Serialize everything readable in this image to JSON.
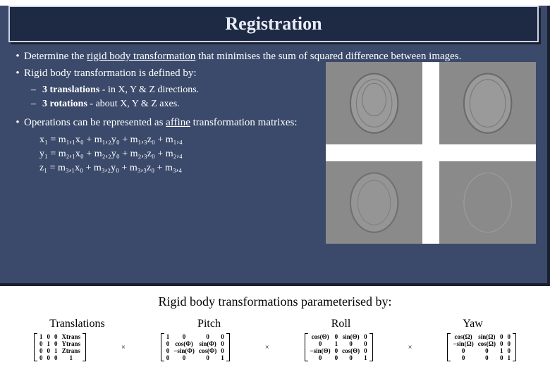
{
  "title": "Registration",
  "bullets": {
    "b1_pre": "Determine the ",
    "b1_u": "rigid body transformation",
    "b1_post": " that minimises the sum of squared difference between images.",
    "b2": "Rigid body transformation is defined by:",
    "s1_pre": "",
    "s1_b": "3 translations",
    "s1_post": " - in X, Y & Z directions.",
    "s2_b": "3 rotations",
    "s2_post": " - about X, Y & Z axes.",
    "b3_pre": "Operations can be represented as ",
    "b3_u": "affine",
    "b3_post": " transformation matrixes:"
  },
  "equations": {
    "e1": "x₁ = m₁,₁x₀ + m₁,₂y₀ + m₁,₃z₀ + m₁,₄",
    "e2": "y₁ = m₂,₁x₀ + m₂,₂y₀ + m₂,₃z₀ + m₂,₄",
    "e3": "z₁ = m₃,₁x₀ + m₃,₂y₀ + m₃,₃z₀ + m₃,₄"
  },
  "param_title": "Rigid body transformations parameterised by:",
  "params": {
    "p1": "Translations",
    "p2": "Pitch",
    "p3": "Roll",
    "p4": "Yaw"
  },
  "matrices": {
    "trans": [
      [
        "1",
        "0",
        "0",
        "Xtrans"
      ],
      [
        "0",
        "1",
        "0",
        "Ytrans"
      ],
      [
        "0",
        "0",
        "1",
        "Ztrans"
      ],
      [
        "0",
        "0",
        "0",
        "1"
      ]
    ],
    "pitch": [
      [
        "1",
        "0",
        "0",
        "0"
      ],
      [
        "0",
        "cos(Φ)",
        "sin(Φ)",
        "0"
      ],
      [
        "0",
        "−sin(Φ)",
        "cos(Φ)",
        "0"
      ],
      [
        "0",
        "0",
        "0",
        "1"
      ]
    ],
    "roll": [
      [
        "cos(Θ)",
        "0",
        "sin(Θ)",
        "0"
      ],
      [
        "0",
        "1",
        "0",
        "0"
      ],
      [
        "−sin(Θ)",
        "0",
        "cos(Θ)",
        "0"
      ],
      [
        "0",
        "0",
        "0",
        "1"
      ]
    ],
    "yaw": [
      [
        "cos(Ω)",
        "sin(Ω)",
        "0",
        "0"
      ],
      [
        "−sin(Ω)",
        "cos(Ω)",
        "0",
        "0"
      ],
      [
        "0",
        "0",
        "1",
        "0"
      ],
      [
        "0",
        "0",
        "0",
        "1"
      ]
    ]
  },
  "colors": {
    "slide_bg": "#3b4a6b",
    "title_bg": "#1e2a44",
    "title_border": "#cdd4e6",
    "brain_bg": "#8a8a8a"
  }
}
